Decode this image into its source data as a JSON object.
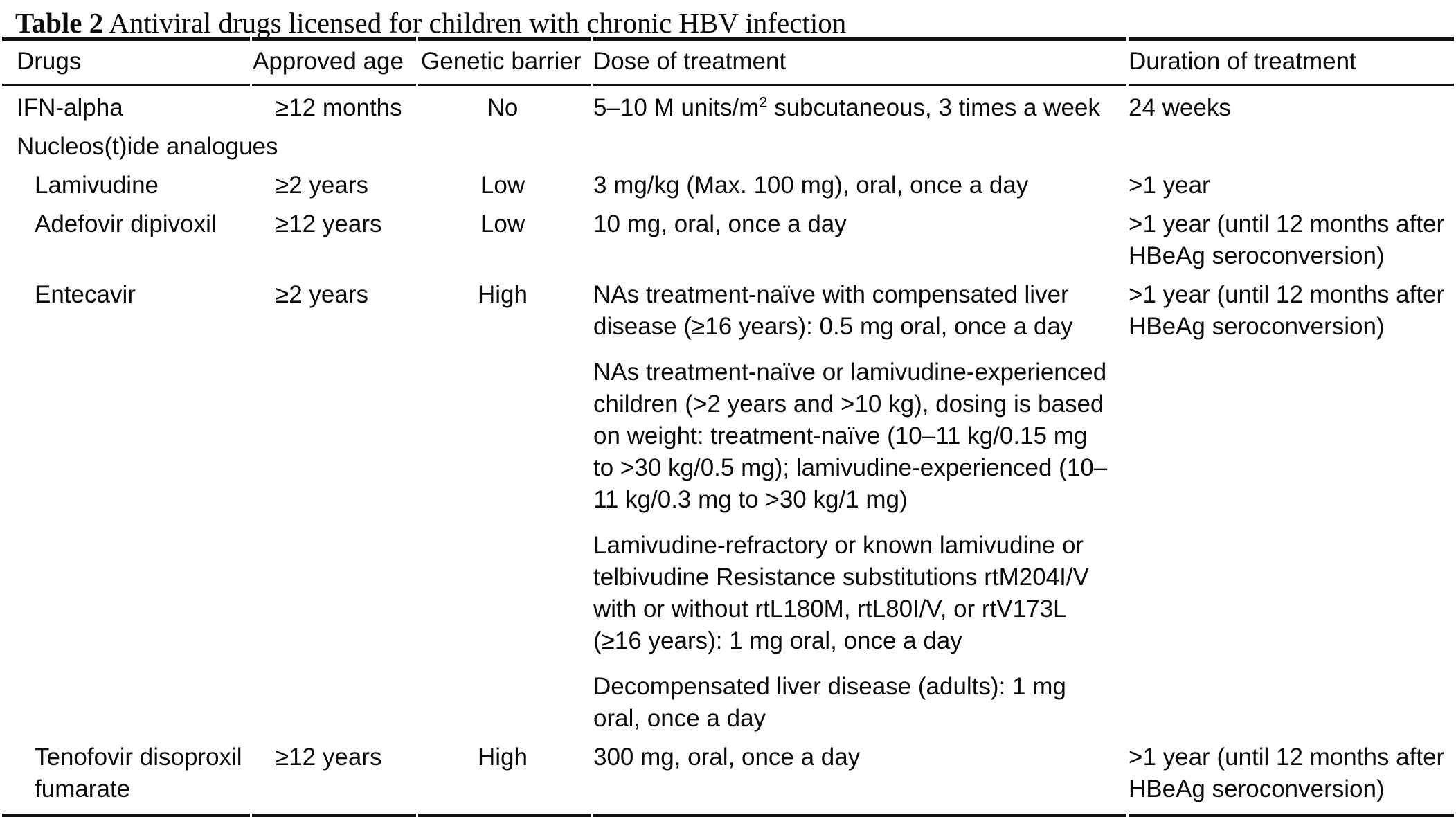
{
  "title": {
    "label": "Table 2",
    "caption": "Antiviral drugs licensed for children with chronic HBV infection"
  },
  "table": {
    "columns": [
      "Drugs",
      "Approved age",
      "Genetic barrier",
      "Dose of treatment",
      "Duration of treatment"
    ],
    "rows": [
      {
        "drug": "IFN-alpha",
        "indent": 0,
        "approved_age": "≥12 months",
        "genetic_barrier": "No",
        "dose": [
          "5–10 M units/m² subcutaneous, 3 times a week"
        ],
        "duration": "24 weeks"
      },
      {
        "section": "Nucleos(t)ide analogues"
      },
      {
        "drug": "Lamivudine",
        "indent": 1,
        "approved_age": "≥2 years",
        "genetic_barrier": "Low",
        "dose": [
          "3 mg/kg (Max. 100 mg), oral, once a day"
        ],
        "duration": ">1 year"
      },
      {
        "drug": "Adefovir dipivoxil",
        "indent": 1,
        "approved_age": "≥12 years",
        "genetic_barrier": "Low",
        "dose": [
          "10 mg, oral, once a day"
        ],
        "duration": ">1 year (until 12 months after HBeAg seroconversion)"
      },
      {
        "drug": "Entecavir",
        "indent": 1,
        "approved_age": "≥2 years",
        "genetic_barrier": "High",
        "dose": [
          "NAs treatment-naïve with compensated liver disease (≥16 years): 0.5 mg oral, once a day",
          "NAs treatment-naïve or lamivudine-experienced children (>2 years and >10 kg), dosing is based on weight: treatment-naïve (10–11 kg/0.15 mg to >30 kg/0.5 mg); lamivudine-experienced (10–11 kg/0.3 mg to >30 kg/1 mg)",
          "Lamivudine-refractory or known lamivudine or telbivudine Resistance substitutions rtM204I/V with or without rtL180M, rtL80I/V, or rtV173L (≥16 years): 1 mg oral, once a day",
          "Decompensated liver disease (adults): 1 mg oral, once a day"
        ],
        "duration": ">1 year (until 12 months after HBeAg seroconversion)"
      },
      {
        "drug": "Tenofovir disoproxil fumarate",
        "indent": 1,
        "approved_age": "≥12 years",
        "genetic_barrier": "High",
        "dose": [
          "300 mg, oral, once a day"
        ],
        "duration": ">1 year (until 12 months after HBeAg seroconversion)"
      }
    ]
  }
}
